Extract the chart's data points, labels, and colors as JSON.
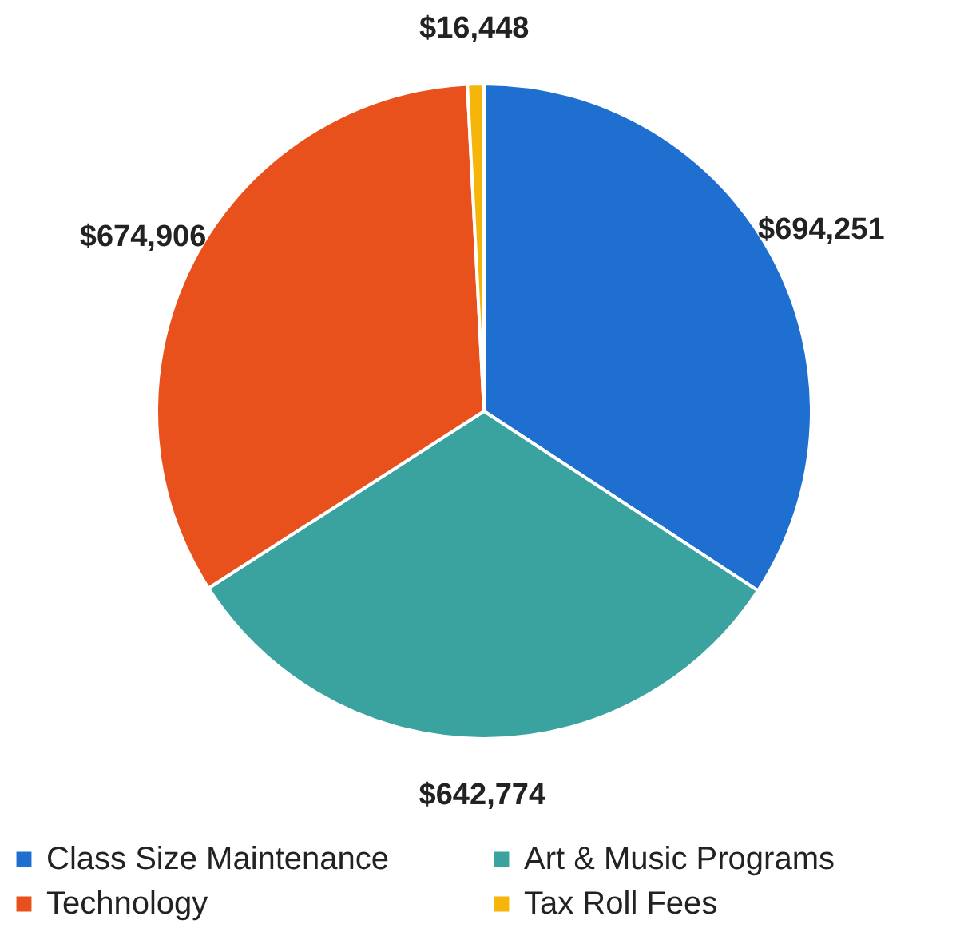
{
  "chart_data": {
    "type": "pie",
    "categories": [
      "Class Size Maintenance",
      "Art & Music Programs",
      "Technology",
      "Tax Roll Fees"
    ],
    "values": [
      694251,
      642774,
      674906,
      16448
    ],
    "colors": [
      "#1f6fd1",
      "#3aa3a0",
      "#e8501c",
      "#f5b50a"
    ],
    "value_labels": [
      "$694,251",
      "$642,774",
      "$674,906",
      "$16,448"
    ],
    "legend": "bottom"
  }
}
